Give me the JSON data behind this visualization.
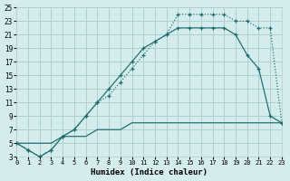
{
  "xlabel": "Humidex (Indice chaleur)",
  "bg_color": "#d4ecec",
  "grid_color": "#aed0d0",
  "line_color": "#1a6b6b",
  "xlim": [
    0,
    23
  ],
  "ylim": [
    3,
    25
  ],
  "xticks": [
    0,
    1,
    2,
    3,
    4,
    5,
    6,
    7,
    8,
    9,
    10,
    11,
    12,
    13,
    14,
    15,
    16,
    17,
    18,
    19,
    20,
    21,
    22,
    23
  ],
  "yticks": [
    3,
    5,
    7,
    9,
    11,
    13,
    15,
    17,
    19,
    21,
    23,
    25
  ],
  "curve_upper_x": [
    0,
    1,
    2,
    3,
    4,
    5,
    6,
    7,
    8,
    9,
    10,
    11,
    12,
    13,
    14,
    15,
    16,
    17,
    18,
    19,
    20,
    21,
    22,
    23
  ],
  "curve_upper_y": [
    5,
    4,
    3,
    4,
    6,
    7,
    9,
    11,
    12,
    14,
    16,
    18,
    20,
    21,
    24,
    24,
    24,
    24,
    24,
    23,
    23,
    22,
    22,
    8
  ],
  "curve_mid_x": [
    0,
    1,
    2,
    3,
    4,
    5,
    6,
    7,
    8,
    9,
    10,
    11,
    12,
    13,
    14,
    15,
    16,
    17,
    18,
    19,
    20,
    21,
    22,
    23
  ],
  "curve_mid_y": [
    5,
    4,
    3,
    4,
    6,
    7,
    9,
    11,
    13,
    15,
    17,
    19,
    20,
    21,
    22,
    22,
    22,
    22,
    22,
    21,
    18,
    16,
    9,
    8
  ],
  "curve_low_x": [
    0,
    1,
    2,
    3,
    4,
    5,
    6,
    7,
    8,
    9,
    10,
    11,
    12,
    13,
    14,
    15,
    16,
    17,
    18,
    19,
    20,
    21,
    22,
    23
  ],
  "curve_low_y": [
    5,
    5,
    5,
    5,
    6,
    6,
    6,
    7,
    7,
    7,
    8,
    8,
    8,
    8,
    8,
    8,
    8,
    8,
    8,
    8,
    8,
    8,
    8,
    8
  ]
}
